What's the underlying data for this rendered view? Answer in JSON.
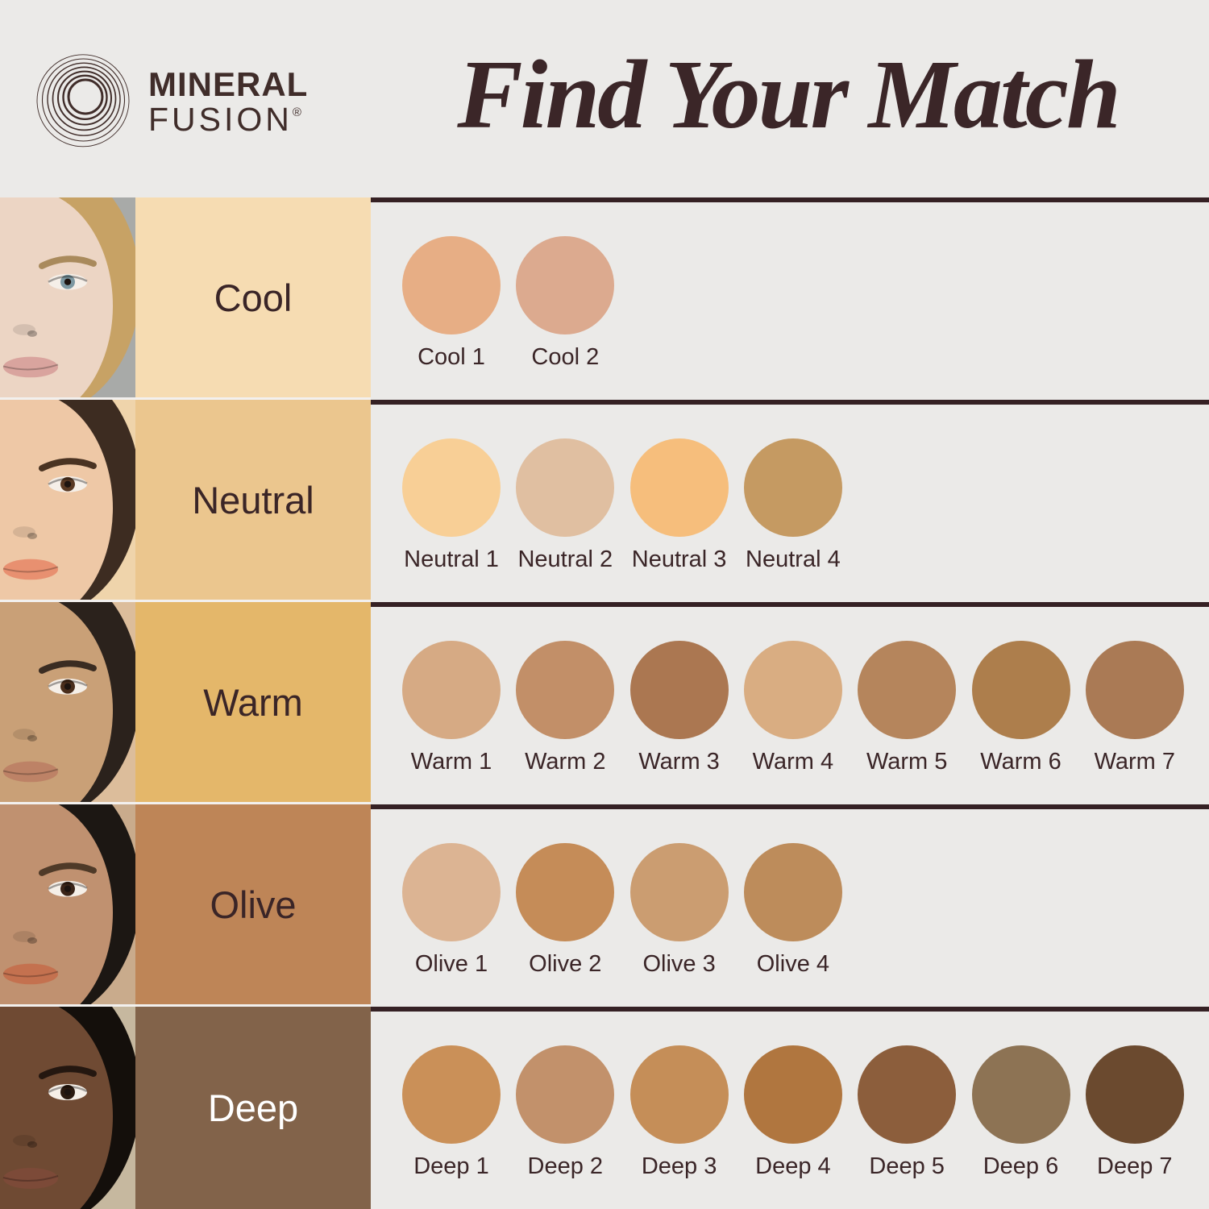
{
  "brand": {
    "line1": "MINERAL",
    "line2": "FUSION",
    "registered": "®"
  },
  "header": {
    "title": "Find Your Match"
  },
  "theme": {
    "page_bg": "#ebeae8",
    "ink": "#3a2527",
    "separator": "#352124",
    "title_color": "#3b2628"
  },
  "rows": [
    {
      "label": "Cool",
      "label_bg": "#f6dcb2",
      "label_text_color": "#3a2527",
      "face": {
        "bg": "#a8aaa8",
        "skin": "#ecd5c4",
        "hair": "#c7a265",
        "iris": "#7c98a2",
        "lips": "#d9a49e",
        "brow": "#a98a5c"
      },
      "swatches": [
        {
          "name": "Cool 1",
          "color": "#e7ae85"
        },
        {
          "name": "Cool 2",
          "color": "#dcaa8f"
        }
      ]
    },
    {
      "label": "Neutral",
      "label_bg": "#ebc68e",
      "label_text_color": "#3a2527",
      "face": {
        "bg": "#efd4ab",
        "skin": "#eec8a6",
        "hair": "#3d2c21",
        "iris": "#5a3a24",
        "lips": "#e89070",
        "brow": "#4a3322"
      },
      "swatches": [
        {
          "name": "Neutral 1",
          "color": "#f8cf96"
        },
        {
          "name": "Neutral 2",
          "color": "#e0bfa1"
        },
        {
          "name": "Neutral 3",
          "color": "#f6be7c"
        },
        {
          "name": "Neutral 4",
          "color": "#c59a62"
        }
      ]
    },
    {
      "label": "Warm",
      "label_bg": "#e4b76a",
      "label_text_color": "#3a2527",
      "face": {
        "bg": "#dcbd9b",
        "skin": "#c9a077",
        "hair": "#2b221c",
        "iris": "#4a2e1c",
        "lips": "#bd8266",
        "brow": "#3a2c22"
      },
      "swatches": [
        {
          "name": "Warm 1",
          "color": "#d6aa84"
        },
        {
          "name": "Warm 2",
          "color": "#c28f68"
        },
        {
          "name": "Warm 3",
          "color": "#ab7751"
        },
        {
          "name": "Warm 4",
          "color": "#d9ad82"
        },
        {
          "name": "Warm 5",
          "color": "#b5855c"
        },
        {
          "name": "Warm 6",
          "color": "#ad7e4c"
        },
        {
          "name": "Warm 7",
          "color": "#aa7a55"
        }
      ]
    },
    {
      "label": "Olive",
      "label_bg": "#be8557",
      "label_text_color": "#3a2527",
      "face": {
        "bg": "#c9ab8c",
        "skin": "#c09170",
        "hair": "#1c1713",
        "iris": "#3a2418",
        "lips": "#c4714f",
        "brow": "#4f3a28"
      },
      "swatches": [
        {
          "name": "Olive 1",
          "color": "#dcb493"
        },
        {
          "name": "Olive 2",
          "color": "#c58c58"
        },
        {
          "name": "Olive 3",
          "color": "#cb9d71"
        },
        {
          "name": "Olive 4",
          "color": "#bd8c5b"
        }
      ]
    },
    {
      "label": "Deep",
      "label_bg": "#82634a",
      "label_text_color": "#ffffff",
      "face": {
        "bg": "#c6b89f",
        "skin": "#6f4a33",
        "hair": "#140f0b",
        "iris": "#2a1a10",
        "lips": "#7c4a38",
        "brow": "#241710"
      },
      "swatches": [
        {
          "name": "Deep 1",
          "color": "#ca9058"
        },
        {
          "name": "Deep 2",
          "color": "#c2916b"
        },
        {
          "name": "Deep 3",
          "color": "#c58e58"
        },
        {
          "name": "Deep 4",
          "color": "#b0763f"
        },
        {
          "name": "Deep 5",
          "color": "#8c5e3c"
        },
        {
          "name": "Deep 6",
          "color": "#8d7354"
        },
        {
          "name": "Deep 7",
          "color": "#6b4a2f"
        }
      ]
    }
  ]
}
